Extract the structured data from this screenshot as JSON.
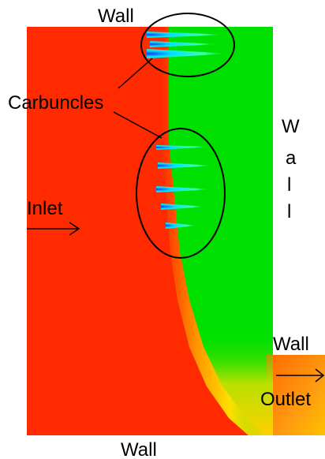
{
  "labels": {
    "wall_top": "Wall",
    "carbuncles": "Carbuncles",
    "inlet": "Inlet",
    "wall_right_letters": [
      "W",
      "a",
      "l",
      "l"
    ],
    "wall_step": "Wall",
    "outlet": "Outlet",
    "wall_bottom": "Wall"
  },
  "colors": {
    "background": "#ffffff",
    "upstream_region": "#ff2a00",
    "downstream_region": "#00e000",
    "annotation": "#000000",
    "transition_yellow": "#ffe000"
  }
}
